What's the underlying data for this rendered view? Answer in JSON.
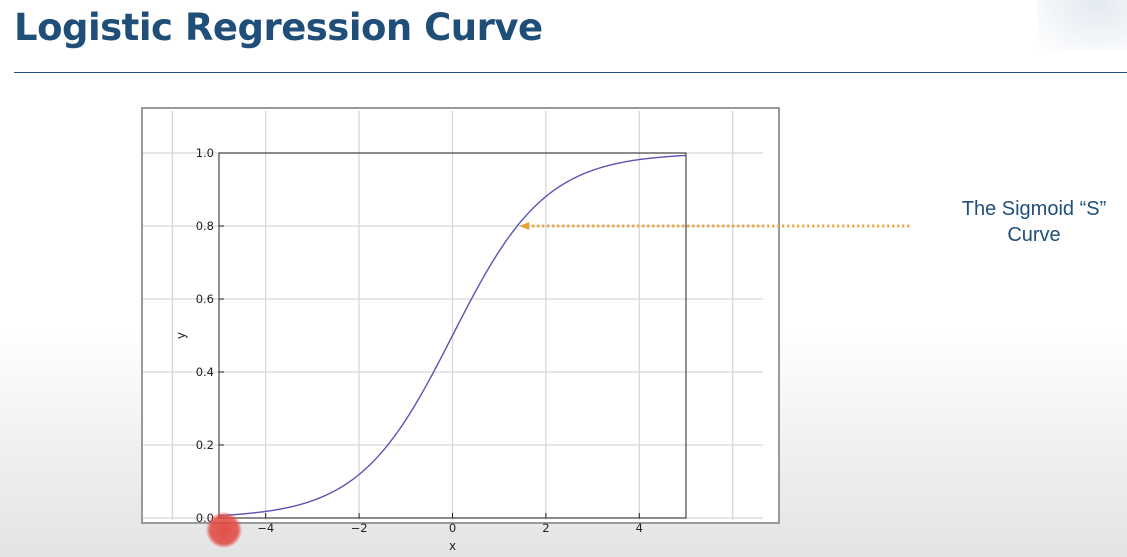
{
  "slide": {
    "title": "Logistic Regression Curve"
  },
  "annotation": {
    "line1": "The Sigmoid “S”",
    "line2": "Curve",
    "arrow_color": "#e8a037"
  },
  "colors": {
    "title": "#1f4e79",
    "curve": "#5a54b4",
    "cursor": "#e24840"
  },
  "chart_data": {
    "type": "line",
    "function": "sigmoid",
    "series": [
      {
        "x": [
          -5,
          -4.5,
          -4,
          -3.5,
          -3,
          -2.5,
          -2,
          -1.5,
          -1,
          -0.5,
          0,
          0.5,
          1,
          1.5,
          2,
          2.5,
          3,
          3.5,
          4,
          4.5,
          5
        ],
        "y": [
          0.0067,
          0.011,
          0.018,
          0.029,
          0.047,
          0.076,
          0.119,
          0.182,
          0.269,
          0.378,
          0.5,
          0.622,
          0.731,
          0.818,
          0.881,
          0.924,
          0.953,
          0.971,
          0.982,
          0.989,
          0.9933
        ]
      }
    ],
    "title": "",
    "xlabel": "x",
    "ylabel": "y",
    "xlim": [
      -5,
      5
    ],
    "ylim": [
      0.0,
      1.0
    ],
    "xticks": [
      -4,
      -2,
      0,
      2,
      4
    ],
    "xtick_labels": [
      "−4",
      "−2",
      "0",
      "2",
      "4"
    ],
    "yticks": [
      0.0,
      0.2,
      0.4,
      0.6,
      0.8,
      1.0
    ],
    "ytick_labels": [
      "0.0",
      "0.2",
      "0.4",
      "0.6",
      "0.8",
      "1.0"
    ],
    "grid": true,
    "annotation_y": 0.8
  }
}
